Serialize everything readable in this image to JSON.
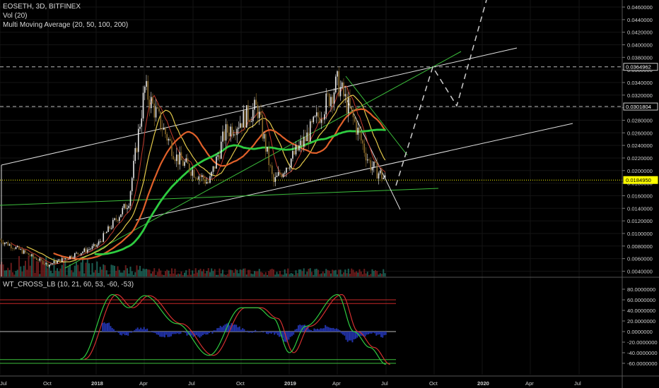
{
  "header": {
    "symbol_line": "EOSETH, 3D, BITFINEX",
    "vol_label": "Vol (20)",
    "ma_label": "Multi Moving Average (20, 50, 100, 200)",
    "osc_label": "WT_CROSS_LB (10, 21, 60, 53, -60, -53)"
  },
  "colors": {
    "background": "#000000",
    "candle_up": "#e8e8e8",
    "candle_down": "#8a6a2a",
    "volume_up": "#1f6b5e",
    "volume_down": "#7a1f1f",
    "ma20": "#c0392b",
    "ma50": "#e2c84a",
    "ma100": "#e0602a",
    "ma200": "#2ecc40",
    "channel": "#e0e0e0",
    "trend_green": "#3cbf3c",
    "wt1": "#2ecc40",
    "wt2": "#d32f2f",
    "wt_hist": "#2233aa",
    "current_price": "#ffff00"
  },
  "price_axis": {
    "ticks": [
      "0.0460000",
      "0.0440000",
      "0.0420000",
      "0.0400000",
      "0.0380000",
      "0.0360000",
      "0.0340000",
      "0.0320000",
      "0.0300000",
      "0.0280000",
      "0.0260000",
      "0.0240000",
      "0.0220000",
      "0.0200000",
      "0.0180000",
      "0.0160000",
      "0.0140000",
      "0.0120000",
      "0.0100000",
      "0.0080000",
      "0.0060000",
      "0.0040000"
    ],
    "tags": [
      {
        "value": 0.0364962,
        "text": "0.0364962",
        "style": "dash"
      },
      {
        "value": 0.0301804,
        "text": "0.0301804",
        "style": "dash"
      },
      {
        "value": 0.018495,
        "text": "0.0184950",
        "style": "current"
      }
    ]
  },
  "osc_axis": {
    "ticks": [
      "80.0000000",
      "60.0000000",
      "40.0000000",
      "20.0000000",
      "0.0000000",
      "-20.0000000",
      "-40.0000000",
      "-60.0000000"
    ]
  },
  "time_axis": {
    "labels": [
      "Jul",
      "Oct",
      "2018",
      "Apr",
      "Jul",
      "Oct",
      "2019",
      "Apr",
      "Jul",
      "Oct",
      "2020",
      "Apr",
      "Jul"
    ],
    "bold": [
      "2018",
      "2019",
      "2020"
    ]
  },
  "chart_data": {
    "type": "candlestick",
    "symbol": "EOSETH",
    "interval": "3D",
    "exchange": "BITFINEX",
    "ylim": [
      0.003,
      0.047
    ],
    "key_points": [
      {
        "x": "2017-07",
        "y": 0.009
      },
      {
        "x": "2017-10",
        "y": 0.005
      },
      {
        "x": "2018-01",
        "y": 0.008
      },
      {
        "x": "2018-03",
        "y": 0.015
      },
      {
        "x": "2018-04",
        "y": 0.033
      },
      {
        "x": "2018-06",
        "y": 0.022
      },
      {
        "x": "2018-08",
        "y": 0.018
      },
      {
        "x": "2018-09",
        "y": 0.026
      },
      {
        "x": "2018-11",
        "y": 0.03
      },
      {
        "x": "2018-12",
        "y": 0.018
      },
      {
        "x": "2019-02",
        "y": 0.025
      },
      {
        "x": "2019-04",
        "y": 0.034
      },
      {
        "x": "2019-05",
        "y": 0.028
      },
      {
        "x": "2019-06",
        "y": 0.021
      },
      {
        "x": "2019-07",
        "y": 0.0185
      }
    ],
    "moving_averages": [
      {
        "name": "MA20",
        "period": 20
      },
      {
        "name": "MA50",
        "period": 50
      },
      {
        "name": "MA100",
        "period": 100
      },
      {
        "name": "MA200",
        "period": 200
      }
    ],
    "horizontal_levels": [
      0.0364962,
      0.0301804,
      0.018495
    ],
    "oscillator": {
      "name": "WT_CROSS_LB",
      "ylim": [
        -68,
        85
      ],
      "levels": [
        60,
        53,
        0,
        -53,
        -60
      ],
      "key_points": [
        {
          "x": "2017-12",
          "y": -52
        },
        {
          "x": "2018-02",
          "y": 70
        },
        {
          "x": "2018-03",
          "y": 45
        },
        {
          "x": "2018-04",
          "y": 68
        },
        {
          "x": "2018-06",
          "y": 15
        },
        {
          "x": "2018-08",
          "y": -45
        },
        {
          "x": "2018-10",
          "y": 45
        },
        {
          "x": "2018-11",
          "y": 45
        },
        {
          "x": "2018-12",
          "y": 25
        },
        {
          "x": "2019-01",
          "y": -40
        },
        {
          "x": "2019-02",
          "y": 10
        },
        {
          "x": "2019-04",
          "y": 70
        },
        {
          "x": "2019-05",
          "y": 0
        },
        {
          "x": "2019-06",
          "y": -30
        },
        {
          "x": "2019-07",
          "y": -62
        }
      ]
    }
  }
}
